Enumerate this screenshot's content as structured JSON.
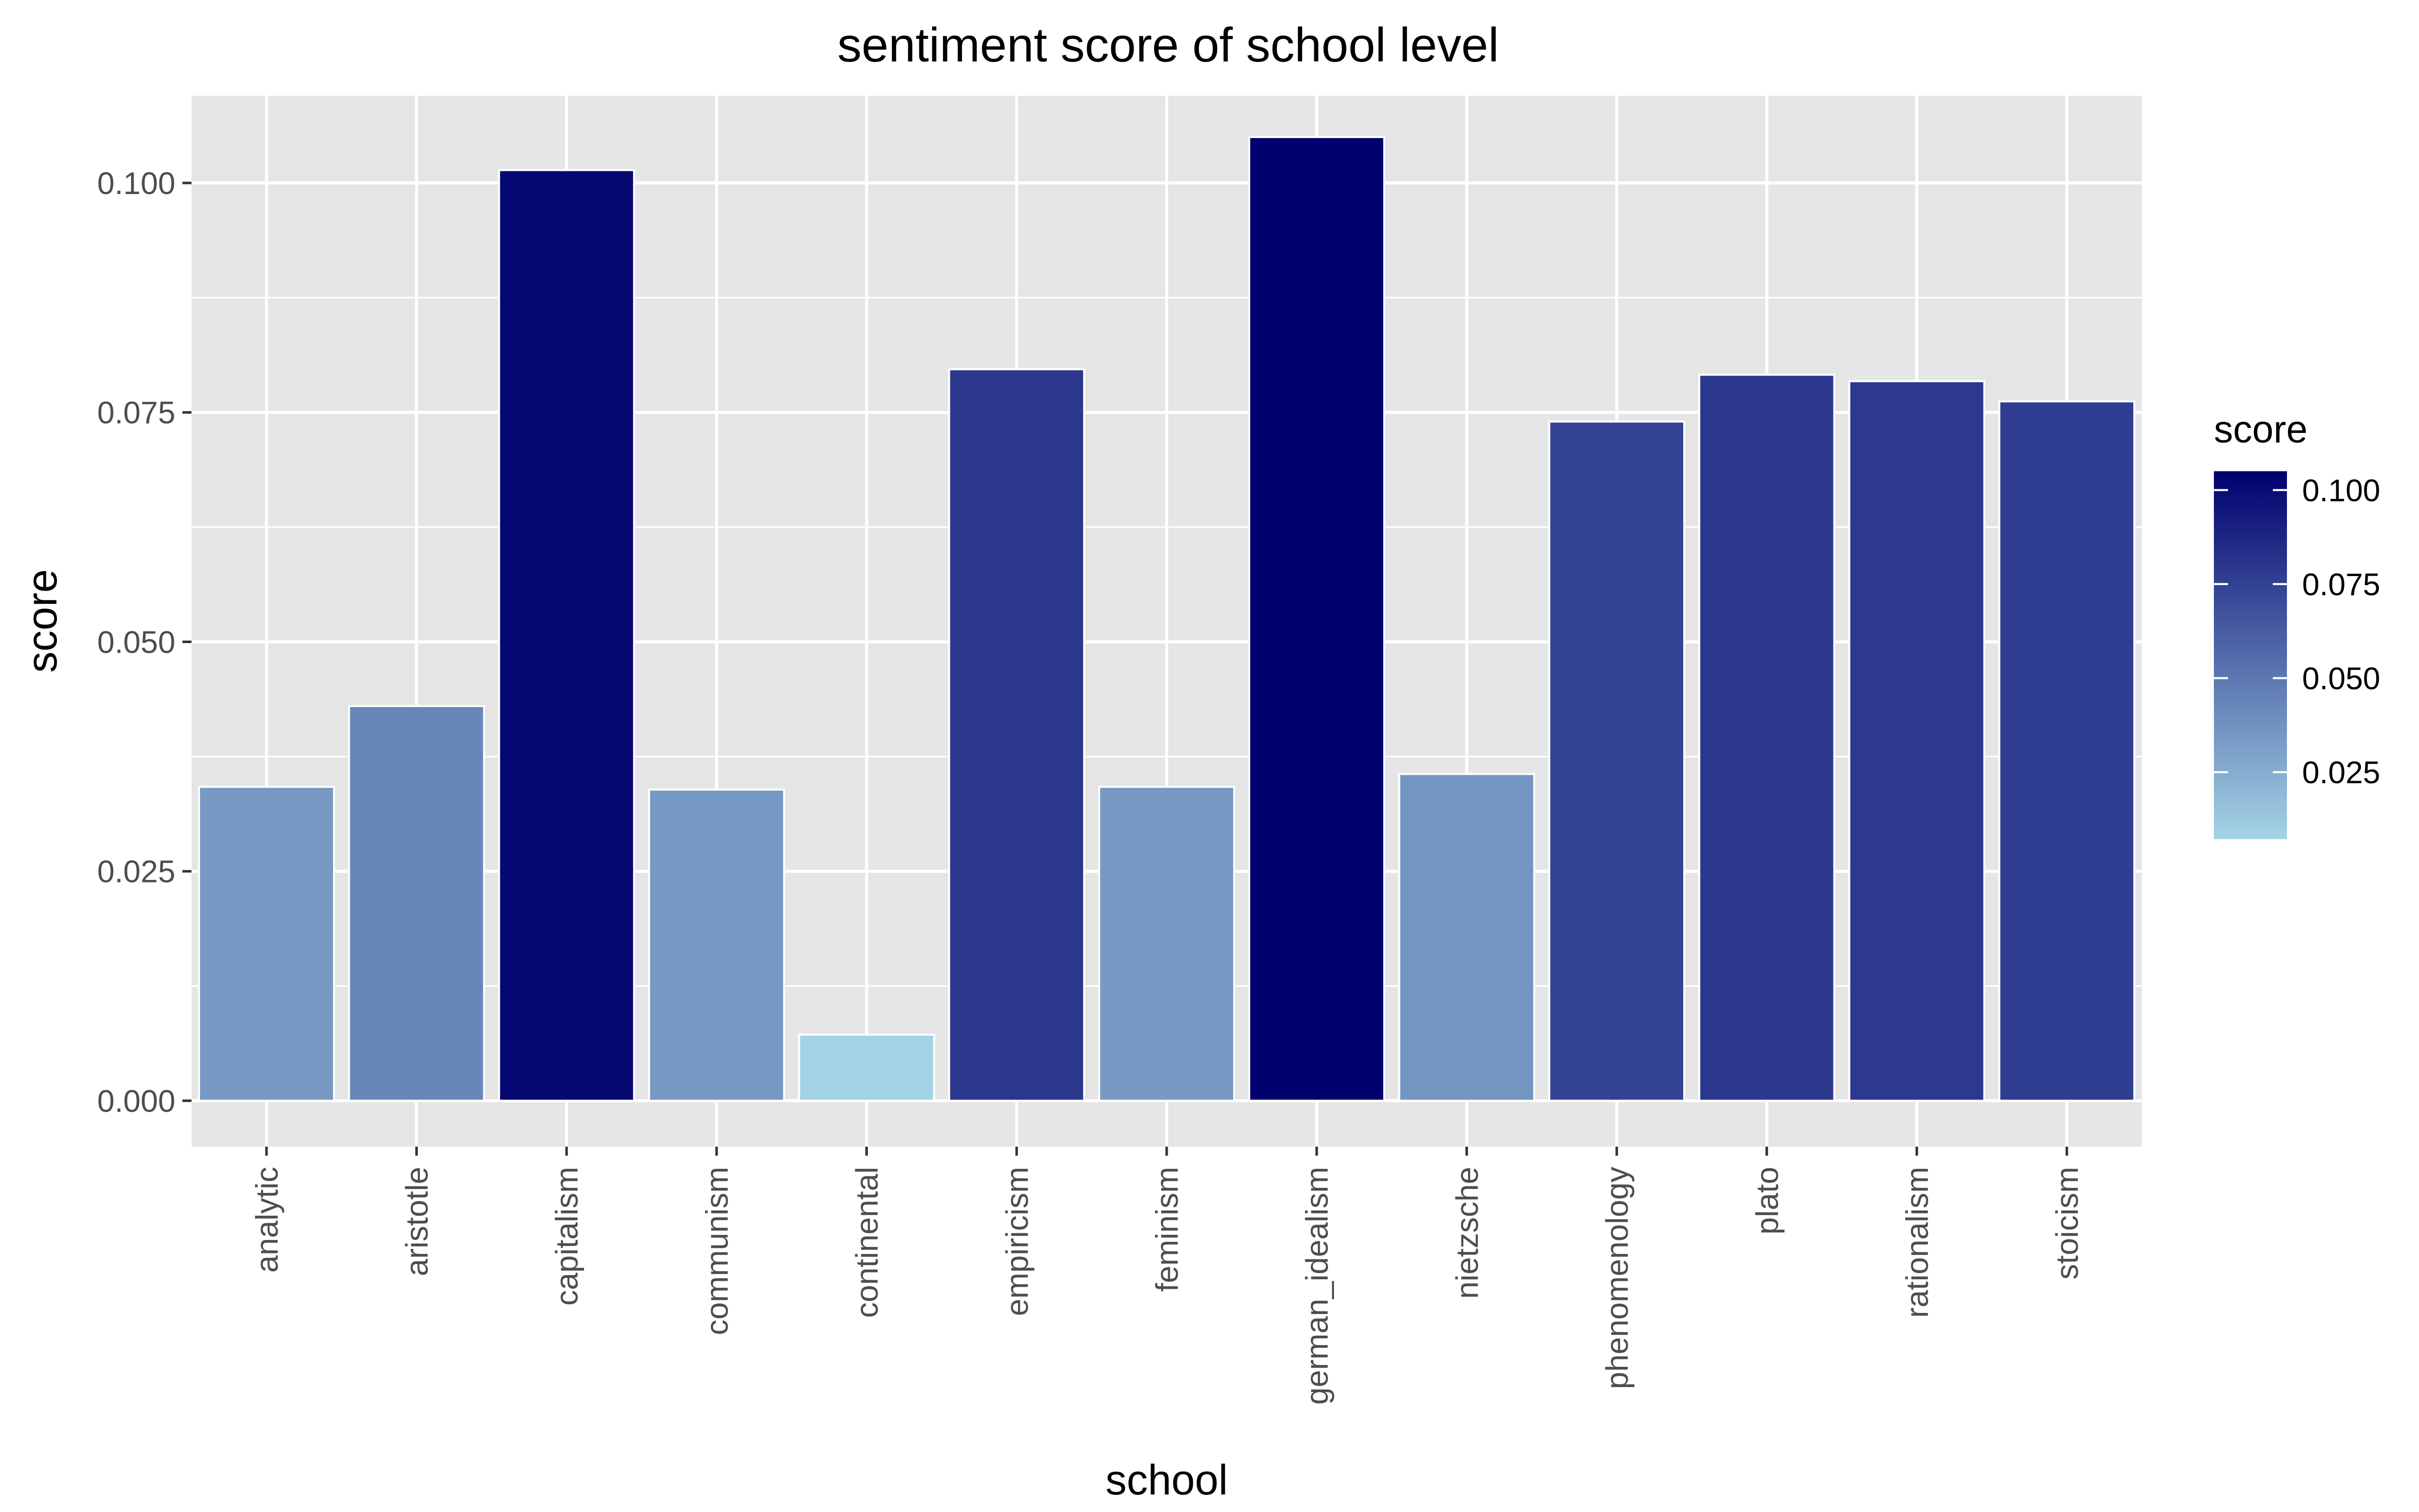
{
  "chart_data": {
    "type": "bar",
    "title": "sentiment score of school level",
    "xlabel": "school",
    "ylabel": "score",
    "categories": [
      "analytic",
      "aristotle",
      "capitalism",
      "communism",
      "continental",
      "empiricism",
      "feminism",
      "german_idealism",
      "nietzsche",
      "phenomenology",
      "plato",
      "rationalism",
      "stoicism"
    ],
    "values": [
      0.0342,
      0.043,
      0.1014,
      0.0339,
      0.0072,
      0.0797,
      0.0342,
      0.105,
      0.0356,
      0.074,
      0.0791,
      0.0784,
      0.0762
    ],
    "ylim": [
      -0.005,
      0.1095
    ],
    "yticks": [
      0.0,
      0.025,
      0.05,
      0.075,
      0.1
    ],
    "ytick_labels": [
      "0.000",
      "0.025",
      "0.050",
      "0.075",
      "0.100"
    ],
    "grid": true,
    "legend": {
      "title": "score",
      "placement": "right",
      "range": [
        0.0072,
        0.105
      ],
      "ticks": [
        0.025,
        0.05,
        0.075,
        0.1
      ],
      "tick_labels": [
        "0.025",
        "0.050",
        "0.075",
        "0.100"
      ],
      "low_color": "#a4d3e5",
      "high_color": "#00006e"
    },
    "colors": {
      "panel_background": "#e5e5e5",
      "grid": "#ffffff",
      "bar_outline": "#ffffff"
    }
  }
}
